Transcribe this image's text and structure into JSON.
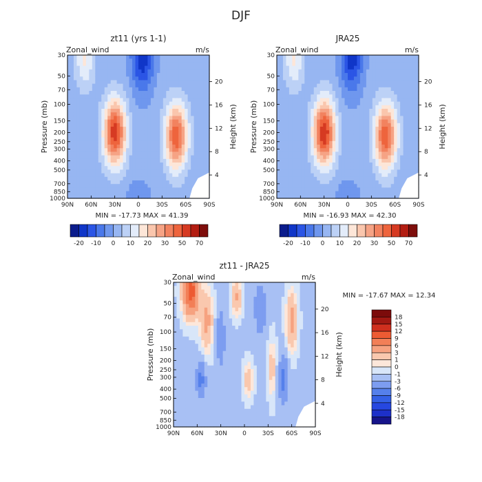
{
  "figure_title": "DJF",
  "chart_data": [
    {
      "type": "heatmap",
      "title": "zt11 (yrs 1-1)",
      "variable": "Zonal_wind",
      "units": "m/s",
      "ylabel": "Pressure (mb)",
      "ylabel_right": "Height (km)",
      "x_ticks": [
        "90N",
        "60N",
        "30N",
        "0",
        "30S",
        "60S",
        "90S"
      ],
      "y_ticks": [
        "30",
        "50",
        "70",
        "100",
        "150",
        "200",
        "250",
        "300",
        "400",
        "500",
        "700",
        "850",
        "1000"
      ],
      "y_ticks_right": [
        "20",
        "16",
        "12",
        "8",
        "4"
      ],
      "stats": "MIN = -17.73   MAX =  41.39",
      "colorbar": {
        "labels": [
          "-20",
          "-10",
          "0",
          "10",
          "20",
          "30",
          "50",
          "70"
        ],
        "levels": [
          -20,
          -15,
          -10,
          -5,
          0,
          5,
          10,
          15,
          20,
          25,
          30,
          35,
          40,
          50,
          60,
          70
        ]
      },
      "features": [
        {
          "kind": "jet",
          "lat": -30,
          "p": 200,
          "amp": 41.4
        },
        {
          "kind": "jet",
          "lat": 48,
          "p": 220,
          "amp": 37
        },
        {
          "kind": "easterly",
          "lat": 5,
          "p": 30,
          "amp": -17.7
        }
      ]
    },
    {
      "type": "heatmap",
      "title": "JRA25",
      "variable": "Zonal_wind",
      "units": "m/s",
      "ylabel": "Pressure (mb)",
      "ylabel_right": "Height (km)",
      "x_ticks": [
        "90N",
        "60N",
        "30N",
        "0",
        "30S",
        "60S",
        "90S"
      ],
      "y_ticks": [
        "30",
        "50",
        "70",
        "100",
        "150",
        "200",
        "250",
        "300",
        "400",
        "500",
        "700",
        "850",
        "1000"
      ],
      "y_ticks_right": [
        "20",
        "16",
        "12",
        "8",
        "4"
      ],
      "stats": "MIN = -16.93   MAX =  42.30",
      "colorbar": {
        "labels": [
          "-20",
          "-10",
          "0",
          "10",
          "20",
          "30",
          "50",
          "70"
        ],
        "levels": [
          -20,
          -15,
          -10,
          -5,
          0,
          5,
          10,
          15,
          20,
          25,
          30,
          35,
          40,
          50,
          60,
          70
        ]
      },
      "features": [
        {
          "kind": "jet",
          "lat": -30,
          "p": 200,
          "amp": 42.3
        },
        {
          "kind": "jet",
          "lat": 48,
          "p": 220,
          "amp": 37
        },
        {
          "kind": "easterly",
          "lat": 5,
          "p": 30,
          "amp": -16.9
        }
      ]
    },
    {
      "type": "heatmap",
      "title": "zt11 - JRA25",
      "variable": "Zonal_wind",
      "units": "m/s",
      "ylabel": "Pressure (mb)",
      "ylabel_right": "Height (km)",
      "x_ticks": [
        "90N",
        "60N",
        "30N",
        "0",
        "30S",
        "60S",
        "90S"
      ],
      "y_ticks": [
        "30",
        "50",
        "70",
        "100",
        "150",
        "200",
        "250",
        "300",
        "400",
        "500",
        "700",
        "850",
        "1000"
      ],
      "y_ticks_right": [
        "20",
        "16",
        "12",
        "8",
        "4"
      ],
      "stats": "MIN = -17.67   MAX =  12.34",
      "colorbar": {
        "labels": [
          "18",
          "15",
          "12",
          "9",
          "6",
          "3",
          "1",
          "0",
          "-1",
          "-3",
          "-6",
          "-9",
          "-12",
          "-15",
          "-18"
        ],
        "levels": [
          -18,
          -15,
          -12,
          -9,
          -6,
          -3,
          -1,
          0,
          1,
          3,
          6,
          9,
          12,
          15,
          18
        ]
      },
      "features": [
        {
          "kind": "diff",
          "lat": -68,
          "p": 35,
          "amp": 12.3
        },
        {
          "kind": "diff",
          "lat": -10,
          "p": 40,
          "amp": 5
        },
        {
          "kind": "diff",
          "lat": 60,
          "p": 60,
          "amp": 6
        }
      ]
    }
  ]
}
